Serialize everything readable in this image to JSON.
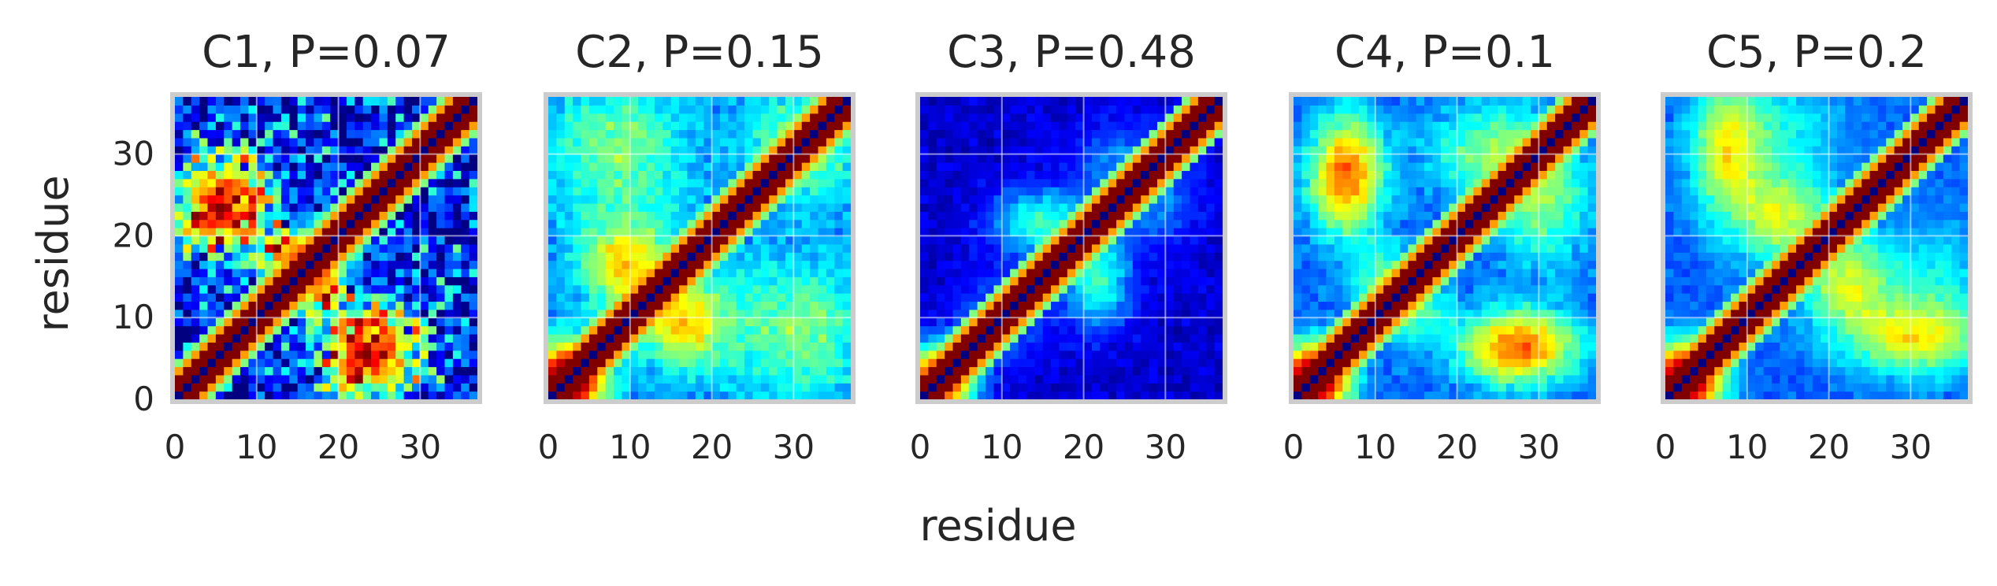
{
  "figure": {
    "xlabel": "residue",
    "ylabel": "residue"
  },
  "chart_data": [
    {
      "type": "heatmap",
      "title": "C1, P=0.07",
      "n": 37,
      "xlim": [
        0,
        37
      ],
      "ylim": [
        0,
        37
      ],
      "xticks": [
        0,
        10,
        20,
        30
      ],
      "yticks": [
        0,
        10,
        20,
        30
      ],
      "colormap": "jet",
      "grid": true,
      "diagonal_band_width": 2,
      "blobs": [
        {
          "x": 3,
          "y": 21,
          "amp": 0.8,
          "sx": 3,
          "sy": 3
        },
        {
          "x": 8,
          "y": 26,
          "amp": 0.6,
          "sx": 3,
          "sy": 4
        },
        {
          "x": 14,
          "y": 18,
          "amp": 0.7,
          "sx": 3,
          "sy": 2
        },
        {
          "x": 22,
          "y": 7,
          "amp": 0.8,
          "sx": 4,
          "sy": 4
        },
        {
          "x": 26,
          "y": 3,
          "amp": 0.6,
          "sx": 4,
          "sy": 3
        },
        {
          "x": 16,
          "y": 13,
          "amp": 0.5,
          "sx": 3,
          "sy": 3
        }
      ],
      "noise": 0.45,
      "floor": 0.05,
      "seed": 11
    },
    {
      "type": "heatmap",
      "title": "C2, P=0.15",
      "n": 37,
      "xlim": [
        0,
        37
      ],
      "ylim": [
        0,
        37
      ],
      "xticks": [
        0,
        10,
        20,
        30
      ],
      "yticks": [
        0,
        10,
        20,
        30
      ],
      "colormap": "jet",
      "grid": true,
      "diagonal_band_width": 2,
      "blobs": [
        {
          "x": 2,
          "y": 2,
          "amp": 0.9,
          "sx": 3,
          "sy": 3
        },
        {
          "x": 9,
          "y": 16,
          "amp": 0.4,
          "sx": 4,
          "sy": 4
        },
        {
          "x": 16,
          "y": 9,
          "amp": 0.4,
          "sx": 4,
          "sy": 4
        },
        {
          "x": 8,
          "y": 30,
          "amp": 0.25,
          "sx": 6,
          "sy": 6
        },
        {
          "x": 30,
          "y": 8,
          "amp": 0.25,
          "sx": 6,
          "sy": 6
        },
        {
          "x": 29,
          "y": 32,
          "amp": 0.35,
          "sx": 4,
          "sy": 4
        }
      ],
      "noise": 0.08,
      "floor": 0.25,
      "seed": 22
    },
    {
      "type": "heatmap",
      "title": "C3, P=0.48",
      "n": 37,
      "xlim": [
        0,
        37
      ],
      "ylim": [
        0,
        37
      ],
      "xticks": [
        0,
        10,
        20,
        30
      ],
      "yticks": [
        0,
        10,
        20,
        30
      ],
      "colormap": "jet",
      "grid": true,
      "diagonal_band_width": 2,
      "blobs": [
        {
          "x": 2,
          "y": 2,
          "amp": 0.9,
          "sx": 3,
          "sy": 3
        },
        {
          "x": 21,
          "y": 14,
          "amp": 0.35,
          "sx": 3,
          "sy": 4
        },
        {
          "x": 14,
          "y": 21,
          "amp": 0.35,
          "sx": 4,
          "sy": 3
        },
        {
          "x": 8,
          "y": 10,
          "amp": 0.25,
          "sx": 3,
          "sy": 3
        },
        {
          "x": 28,
          "y": 24,
          "amp": 0.3,
          "sx": 4,
          "sy": 4
        }
      ],
      "noise": 0.06,
      "floor": 0.08,
      "seed": 33
    },
    {
      "type": "heatmap",
      "title": "C4, P=0.1",
      "n": 37,
      "xlim": [
        0,
        37
      ],
      "ylim": [
        0,
        37
      ],
      "xticks": [
        0,
        10,
        20,
        30
      ],
      "yticks": [
        0,
        10,
        20,
        30
      ],
      "colormap": "jet",
      "grid": true,
      "diagonal_band_width": 2,
      "blobs": [
        {
          "x": 2,
          "y": 2,
          "amp": 0.9,
          "sx": 3,
          "sy": 3
        },
        {
          "x": 5,
          "y": 27,
          "amp": 0.6,
          "sx": 3,
          "sy": 5
        },
        {
          "x": 27,
          "y": 7,
          "amp": 0.6,
          "sx": 5,
          "sy": 3
        },
        {
          "x": 11,
          "y": 14,
          "amp": 0.45,
          "sx": 3,
          "sy": 3
        },
        {
          "x": 30,
          "y": 26,
          "amp": 0.4,
          "sx": 4,
          "sy": 4
        },
        {
          "x": 20,
          "y": 30,
          "amp": 0.3,
          "sx": 4,
          "sy": 4
        }
      ],
      "noise": 0.07,
      "floor": 0.22,
      "seed": 44
    },
    {
      "type": "heatmap",
      "title": "C5, P=0.2",
      "n": 37,
      "xlim": [
        0,
        37
      ],
      "ylim": [
        0,
        37
      ],
      "xticks": [
        0,
        10,
        20,
        30
      ],
      "yticks": [
        0,
        10,
        20,
        30
      ],
      "colormap": "jet",
      "grid": true,
      "diagonal_band_width": 2,
      "blobs": [
        {
          "x": 2,
          "y": 2,
          "amp": 0.9,
          "sx": 3,
          "sy": 3
        },
        {
          "x": 6,
          "y": 30,
          "amp": 0.4,
          "sx": 3,
          "sy": 6
        },
        {
          "x": 30,
          "y": 8,
          "amp": 0.4,
          "sx": 6,
          "sy": 3
        },
        {
          "x": 14,
          "y": 22,
          "amp": 0.35,
          "sx": 4,
          "sy": 4
        },
        {
          "x": 22,
          "y": 14,
          "amp": 0.35,
          "sx": 4,
          "sy": 4
        },
        {
          "x": 33,
          "y": 14,
          "amp": 0.3,
          "sx": 4,
          "sy": 5
        }
      ],
      "noise": 0.06,
      "floor": 0.22,
      "seed": 55
    }
  ]
}
